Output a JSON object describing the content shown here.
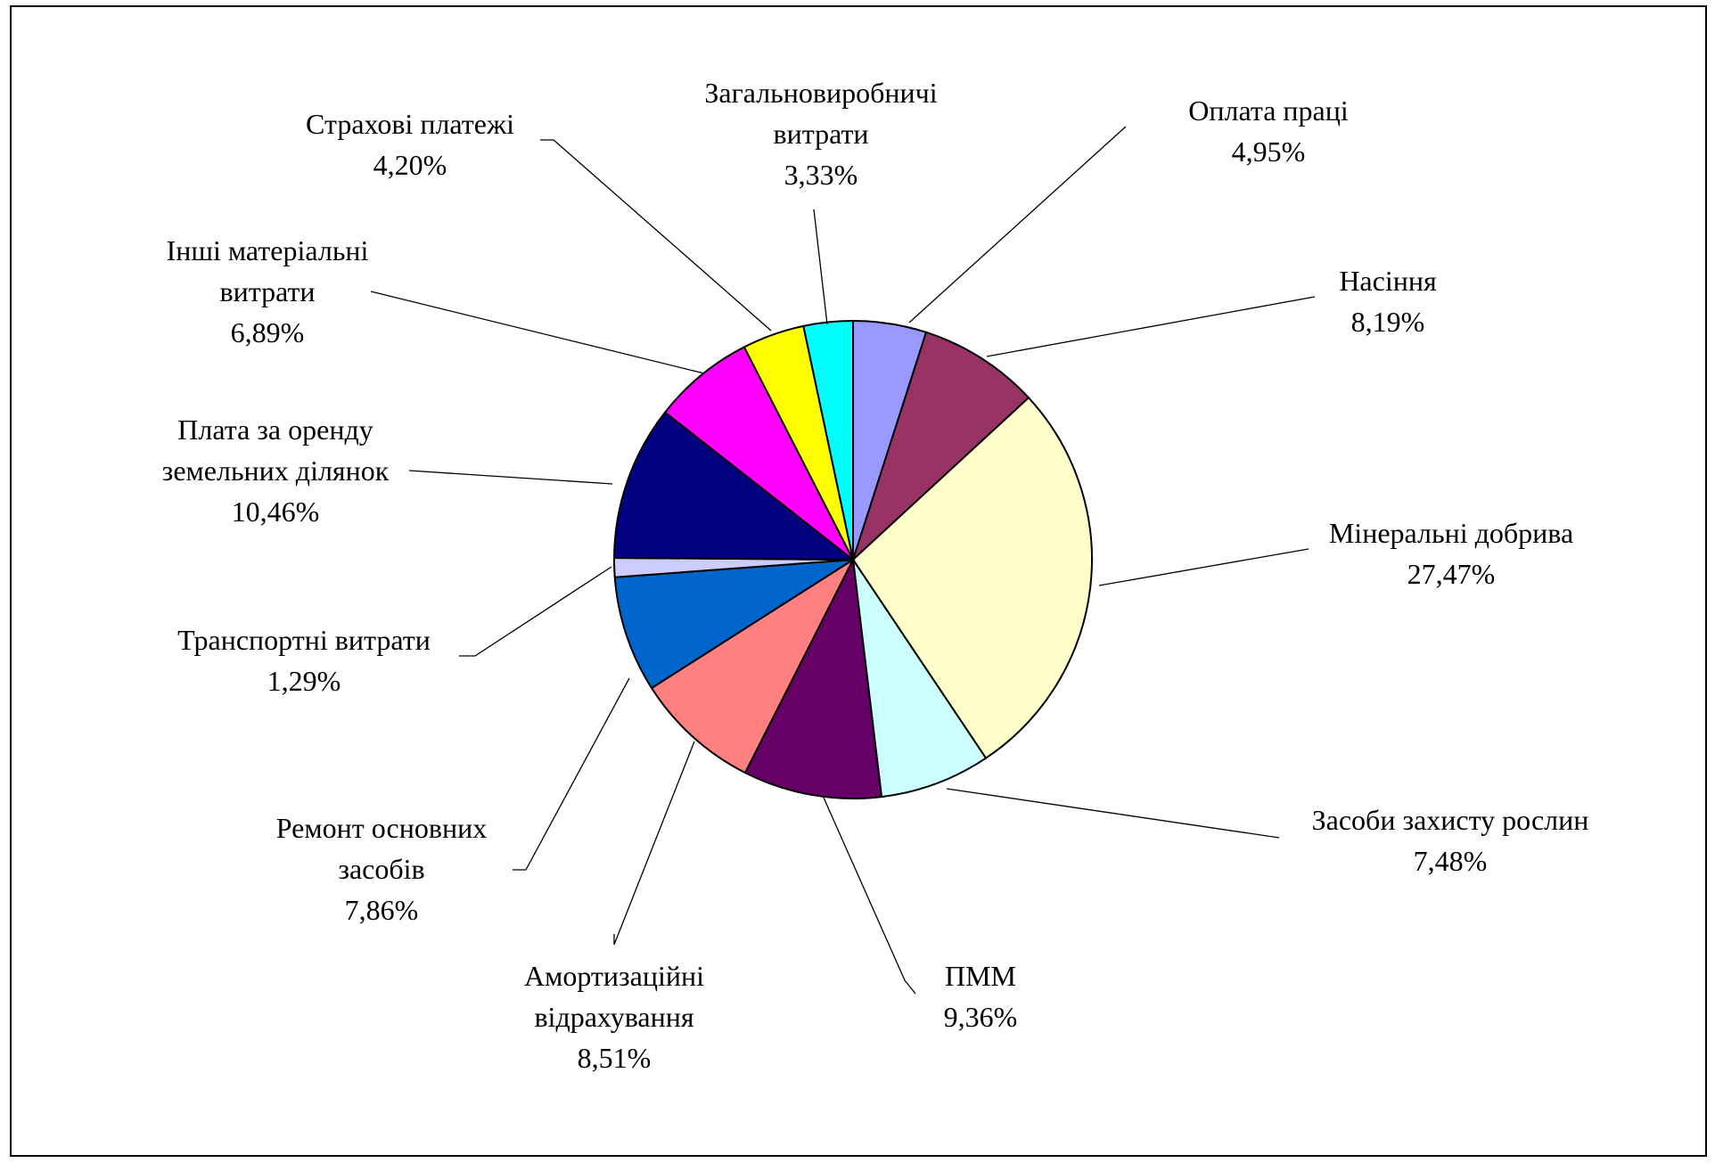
{
  "chart_data": {
    "type": "pie",
    "title": "",
    "start_angle_deg": 0,
    "direction": "clockwise",
    "slices": [
      {
        "label_lines": [
          "Оплата праці"
        ],
        "value": 4.95,
        "value_label": "4,95%",
        "color": "#9999FF"
      },
      {
        "label_lines": [
          "Насіння"
        ],
        "value": 8.19,
        "value_label": "8,19%",
        "color": "#993366"
      },
      {
        "label_lines": [
          "Мінеральні добрива"
        ],
        "value": 27.47,
        "value_label": "27,47%",
        "color": "#FFFFCC"
      },
      {
        "label_lines": [
          "Засоби захисту рослин"
        ],
        "value": 7.48,
        "value_label": "7,48%",
        "color": "#CCFFFF"
      },
      {
        "label_lines": [
          "ПММ"
        ],
        "value": 9.36,
        "value_label": "9,36%",
        "color": "#660066"
      },
      {
        "label_lines": [
          "Амортизаційні",
          "відрахування"
        ],
        "value": 8.51,
        "value_label": "8,51%",
        "color": "#FF8080"
      },
      {
        "label_lines": [
          "Ремонт основних",
          "засобів"
        ],
        "value": 7.86,
        "value_label": "7,86%",
        "color": "#0066CC"
      },
      {
        "label_lines": [
          "Транспортні витрати"
        ],
        "value": 1.29,
        "value_label": "1,29%",
        "color": "#CCCCFF"
      },
      {
        "label_lines": [
          "Плата за оренду",
          "земельних ділянок"
        ],
        "value": 10.46,
        "value_label": "10,46%",
        "color": "#000080"
      },
      {
        "label_lines": [
          "Інші матеріальні",
          "витрати"
        ],
        "value": 6.89,
        "value_label": "6,89%",
        "color": "#FF00FF"
      },
      {
        "label_lines": [
          "Страхові платежі"
        ],
        "value": 4.2,
        "value_label": "4,20%",
        "color": "#FFFF00"
      },
      {
        "label_lines": [
          "Загальновиробничі",
          "витрати"
        ],
        "value": 3.33,
        "value_label": "3,33%",
        "color": "#00FFFF"
      }
    ]
  }
}
